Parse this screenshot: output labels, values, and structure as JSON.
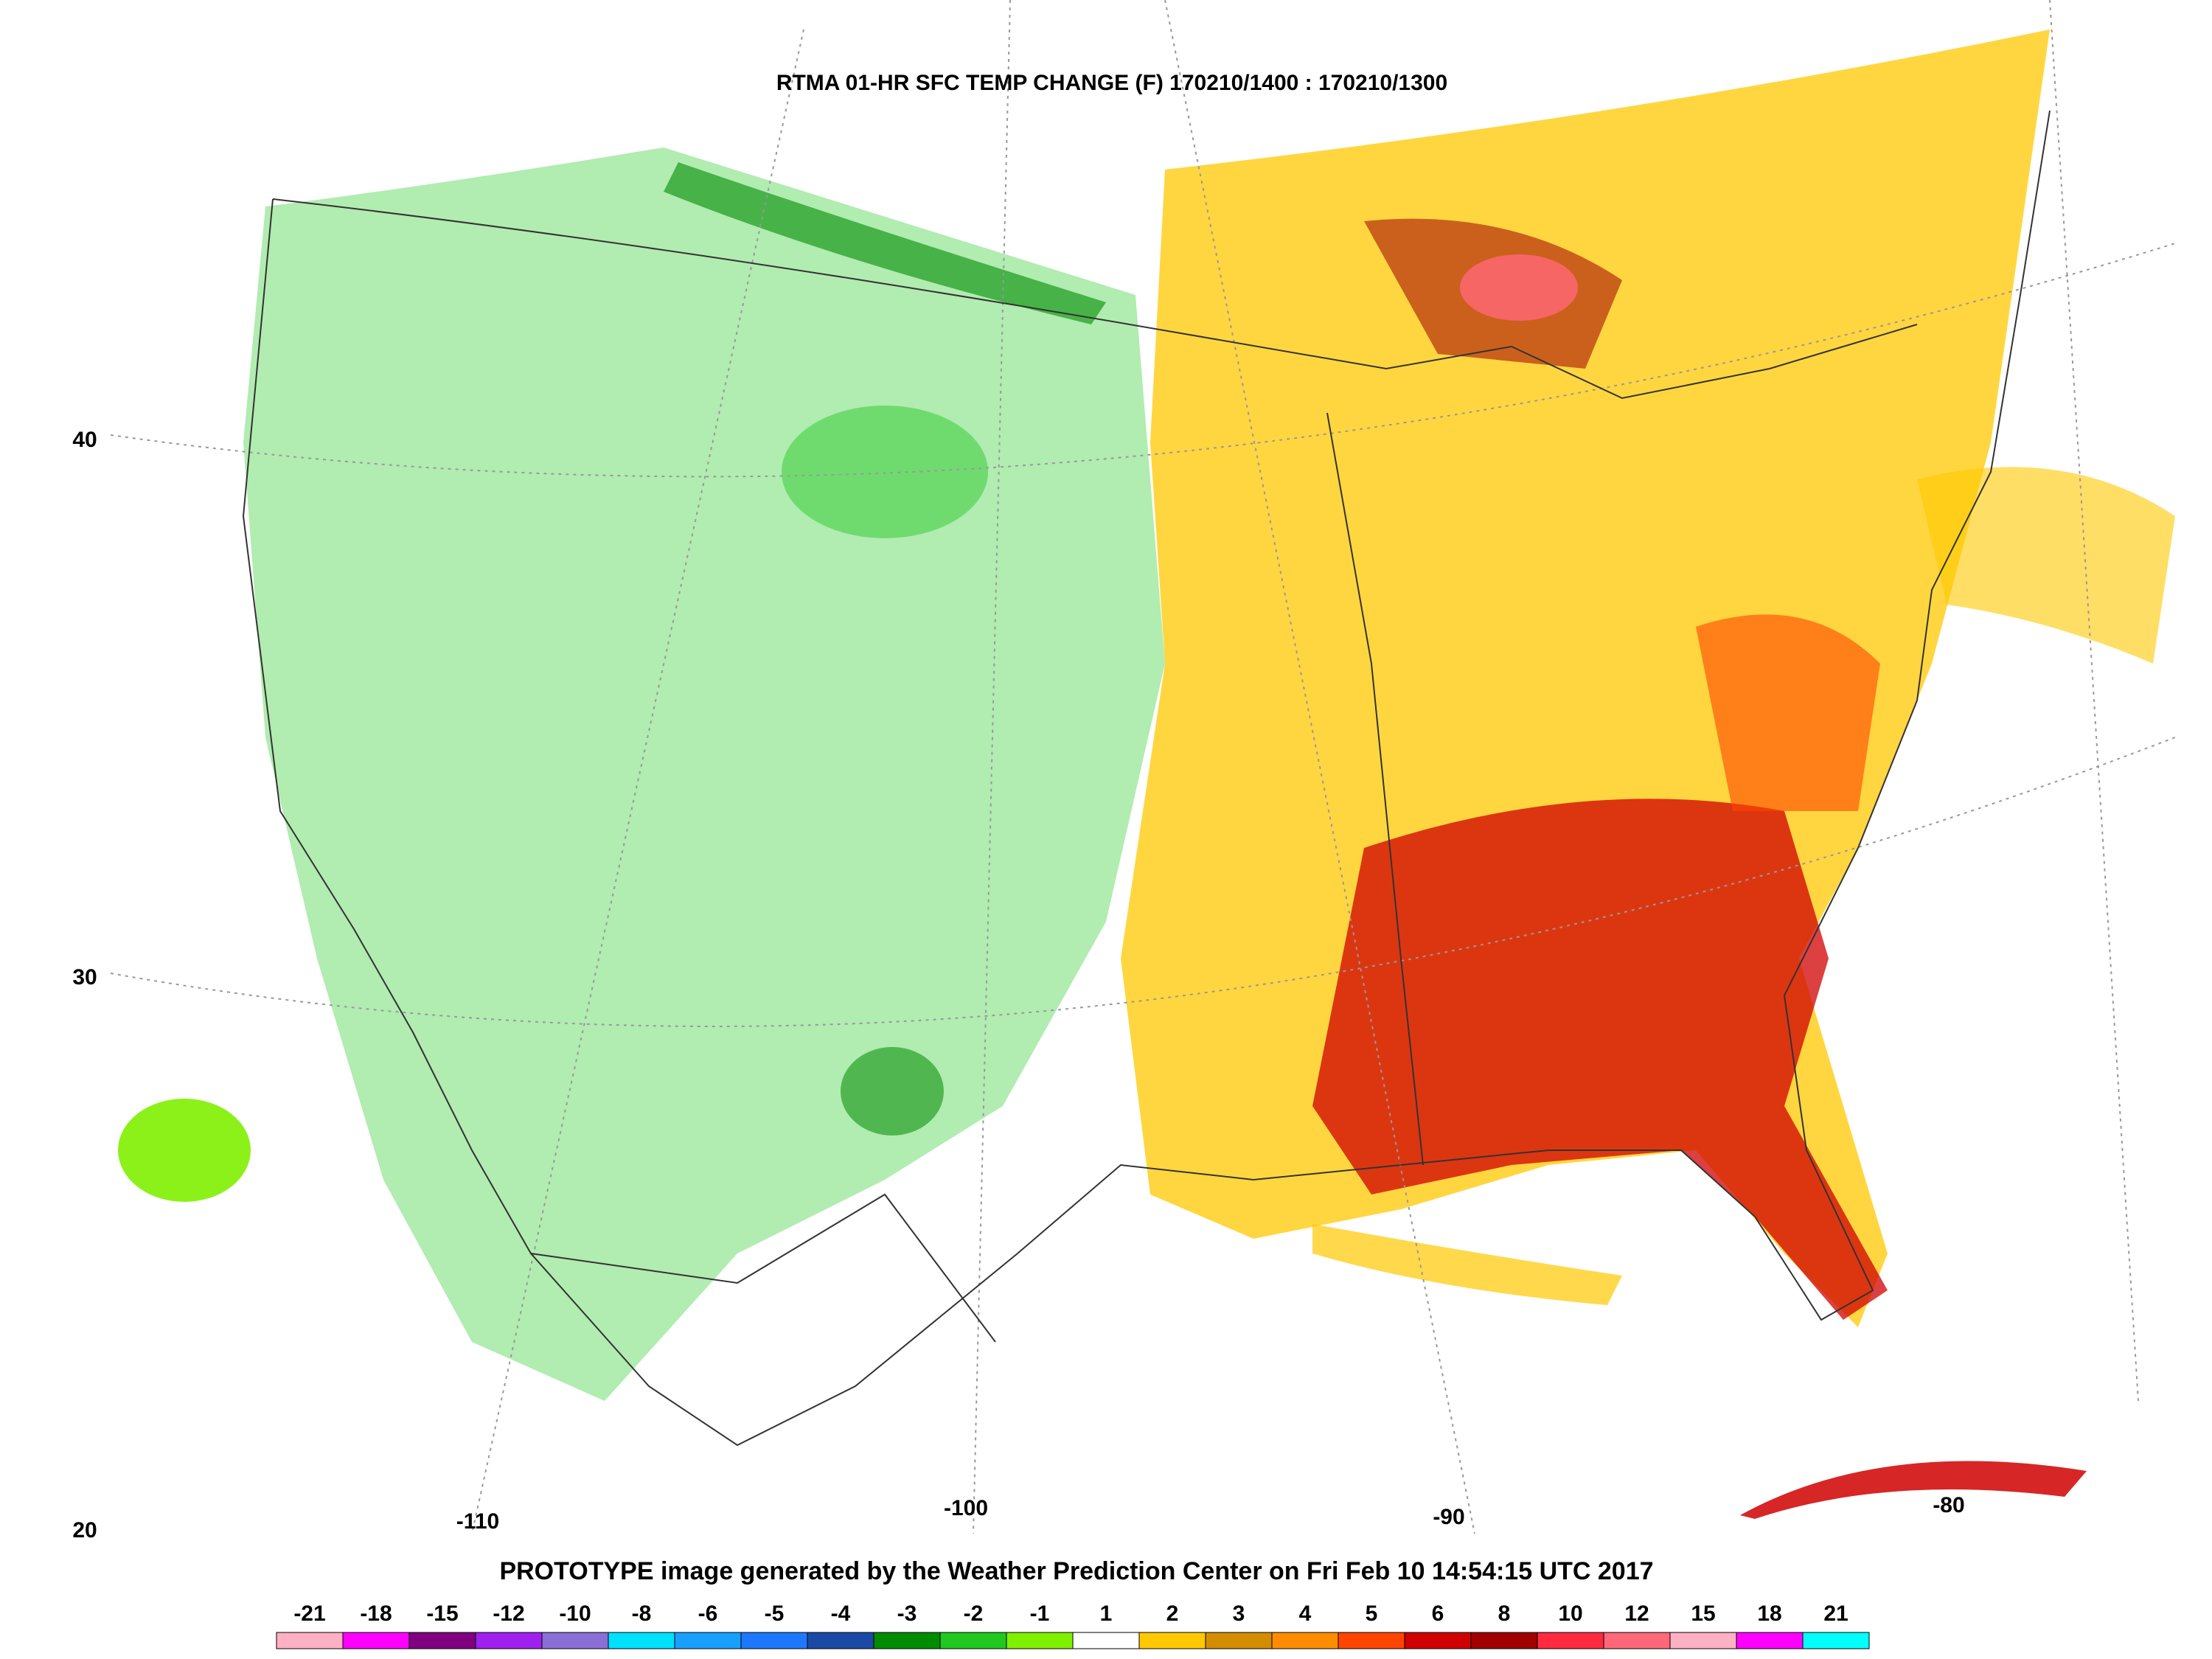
{
  "map": {
    "title": "RTMA 01-HR SFC TEMP CHANGE (F) 170210/1400 : 170210/1300",
    "footer": "PROTOTYPE image generated by the Weather Prediction Center on Fri Feb 10 14:54:15 UTC 2017",
    "latitude_labels": [
      "40",
      "30",
      "20"
    ],
    "longitude_labels": [
      "-110",
      "-100",
      "-90",
      "-80"
    ]
  },
  "colorbar": {
    "labels": [
      "-21",
      "-18",
      "-15",
      "-12",
      "-10",
      "-8",
      "-6",
      "-5",
      "-4",
      "-3",
      "-2",
      "-1",
      "1",
      "2",
      "3",
      "4",
      "5",
      "6",
      "8",
      "10",
      "12",
      "15",
      "18",
      "21"
    ],
    "colors": [
      "#ffb0c4",
      "#ff00ff",
      "#800080",
      "#a020f0",
      "#8a6fd6",
      "#00e0ff",
      "#18a0ff",
      "#1e78ff",
      "#1a4aa6",
      "#008c00",
      "#20c820",
      "#7ff000",
      "#ffffff",
      "#ffc800",
      "#d48c00",
      "#ff8c00",
      "#ff4500",
      "#d00000",
      "#a00000",
      "#ff2a40",
      "#ff6878",
      "#ffb0c4",
      "#ff00ff",
      "#00ffff"
    ]
  },
  "palette": {
    "warm_light": "#ffc800",
    "warm_mid": "#d48c00",
    "warm_orange": "#ff8c00",
    "warm_red": "#d00000",
    "warm_dark": "#a00000",
    "warm_pink": "#ff6878",
    "cool_light": "#7ff000",
    "cool_mid": "#20c820",
    "cool_dark": "#008c00",
    "cool_blue": "#1e78ff"
  }
}
